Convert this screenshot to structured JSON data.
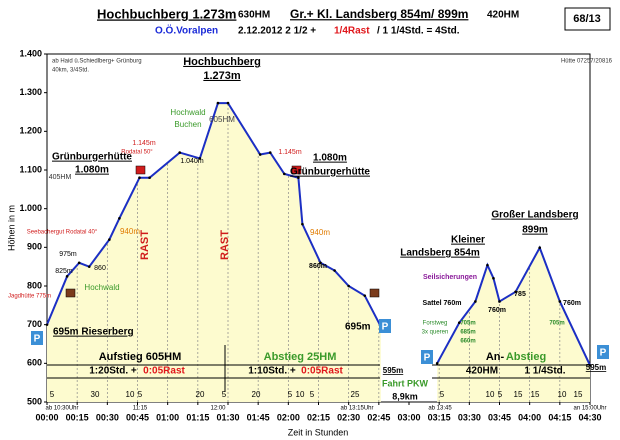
{
  "header": {
    "title_left": "Hochbuchberg 1.273m",
    "hm_left": "630HM",
    "title_right": "Gr.+ Kl. Landsberg 854m/ 899m",
    "hm_right": "420HM",
    "region": "O.Ö.Voralpen",
    "date_time": "2.12.2012  2 1/2 +",
    "rest": "1/4Rast",
    "total": "/ 1 1/4Std. = 4Std.",
    "number": "68/13"
  },
  "chart_data": {
    "type": "area",
    "ylabel": "Höhen in m",
    "xlabel": "Zeit in Stunden",
    "color": "#1c2fc4",
    "fill": "#fdfbcf",
    "x": [
      0,
      10,
      16,
      21,
      31,
      36,
      46,
      51,
      66,
      76,
      85,
      90,
      106,
      111,
      118,
      125,
      127,
      136,
      143,
      150,
      158,
      166,
      180,
      194,
      205,
      213,
      219,
      222,
      225,
      233,
      245,
      255,
      270
    ],
    "values": [
      700,
      825,
      860,
      850,
      920,
      975,
      1080,
      1080,
      1145,
      1130,
      1273,
      1273,
      1140,
      1145,
      1090,
      1080,
      960,
      860,
      840,
      800,
      775,
      695,
      null,
      600,
      705,
      760,
      854,
      820,
      760,
      785,
      899,
      760,
      595
    ],
    "xlim": [
      0,
      270
    ],
    "ylim": [
      500,
      1400
    ],
    "yticks": [
      500,
      600,
      700,
      800,
      900,
      {
        "value": 1000,
        "label": "1.000"
      },
      {
        "value": 1100,
        "label": "1.100"
      },
      {
        "value": 1200,
        "label": "1.200"
      },
      {
        "value": 1300,
        "label": "1.300"
      },
      {
        "value": 1400,
        "label": "1.400"
      }
    ],
    "xticks": [
      {
        "value": 0,
        "label": "00:00"
      },
      {
        "value": 15,
        "label": "00:15"
      },
      {
        "value": 30,
        "label": "00:30"
      },
      {
        "value": 45,
        "label": "00:45"
      },
      {
        "value": 60,
        "label": "01:00"
      },
      {
        "value": 75,
        "label": "01:15"
      },
      {
        "value": 90,
        "label": "01:30"
      },
      {
        "value": 105,
        "label": "01:45"
      },
      {
        "value": 120,
        "label": "02:00"
      },
      {
        "value": 135,
        "label": "02:15"
      },
      {
        "value": 150,
        "label": "02:30"
      },
      {
        "value": 165,
        "label": "02:45"
      },
      {
        "value": 180,
        "label": "03:00"
      },
      {
        "value": 195,
        "label": "03:15"
      },
      {
        "value": 210,
        "label": "03:30"
      },
      {
        "value": 225,
        "label": "03:45"
      },
      {
        "value": 240,
        "label": "04:00"
      },
      {
        "value": 255,
        "label": "04:15"
      },
      {
        "value": 270,
        "label": "04:30"
      }
    ],
    "grid": false,
    "annotations": [
      "Hochbuchberg",
      "1.273m",
      "605HM",
      "Hochwald",
      "Buchen",
      "Grünburgerhütte",
      "1.080m",
      "405HM",
      "1.145m",
      "Rodatal 50°",
      "1.040m",
      "1.145m",
      "1.080m",
      "Grünburgerhütte",
      "Seebachergut Rodatal 40°",
      "940m",
      "975m",
      "825m",
      "860",
      "Jagdhütte 775m",
      "Hochwald",
      "695m Rieserberg",
      "940m",
      "860m",
      "695m",
      "Kleiner",
      "Landsberg 854m",
      "Großer Landsberg",
      "899m",
      "Seilsicherungen",
      "Sattel 760m",
      "760m",
      "785",
      "760m",
      "705m",
      "685m",
      "660m",
      "705m",
      "Forstweg",
      "3x queren",
      "ab Haid ü.Schiedlberg+ Grünburg",
      "40km,  3/4Std.",
      "Hütte 07257/20816",
      "RAST",
      "RAST",
      "595m",
      "595m"
    ],
    "parking": [
      "P",
      "P",
      "P",
      "P"
    ],
    "bands": [
      "Aufstieg 605HM",
      "1:20Std. +",
      "0:05Rast",
      "Abstieg 25HM",
      "1:10Std. +",
      "0:05Rast",
      "Fahrt PKW",
      "8,9km",
      "An-",
      "Abstieg",
      "420HM",
      "1 1/4Std."
    ],
    "durations": [
      "5",
      "30",
      "10",
      "5",
      "20",
      "5",
      "20",
      "5",
      "10",
      "5",
      "25",
      "5",
      "10",
      "5",
      "15",
      "15",
      "10",
      "15"
    ],
    "times": [
      "ab 10:30Uhr",
      "11:15",
      "12:00",
      "ab 13:15Uhr",
      "ab 13:45",
      "an 15:00Uhr"
    ]
  }
}
